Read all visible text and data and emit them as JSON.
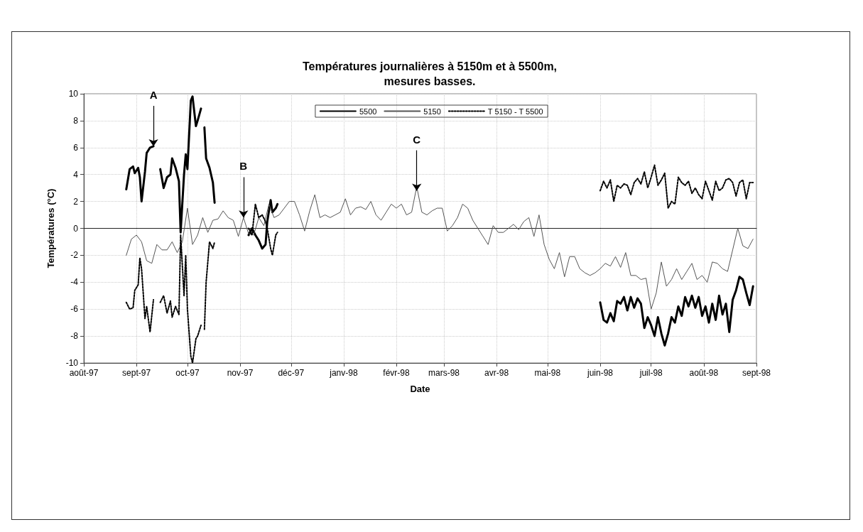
{
  "chart_data": {
    "type": "line",
    "title": "Températures journalières à 5150m et à 5500m,\nmesures basses.",
    "xlabel": "Date",
    "ylabel": "Températures (°C)",
    "xlim": [
      "1997-08-01",
      "1998-09-01"
    ],
    "xticks": [
      {
        "value": "1997-08-01",
        "label": "août-97"
      },
      {
        "value": "1997-09-01",
        "label": "sept-97"
      },
      {
        "value": "1997-10-01",
        "label": "oct-97"
      },
      {
        "value": "1997-11-01",
        "label": "nov-97"
      },
      {
        "value": "1997-12-01",
        "label": "déc-97"
      },
      {
        "value": "1998-01-01",
        "label": "janv-98"
      },
      {
        "value": "1998-02-01",
        "label": "févr-98"
      },
      {
        "value": "1998-03-01",
        "label": "mars-98"
      },
      {
        "value": "1998-04-01",
        "label": "avr-98"
      },
      {
        "value": "1998-05-01",
        "label": "mai-98"
      },
      {
        "value": "1998-06-01",
        "label": "juin-98"
      },
      {
        "value": "1998-07-01",
        "label": "juil-98"
      },
      {
        "value": "1998-08-01",
        "label": "août-98"
      },
      {
        "value": "1998-09-01",
        "label": "sept-98"
      }
    ],
    "ylim": [
      -10,
      10
    ],
    "yticks": [
      -10,
      -8,
      -6,
      -4,
      -2,
      0,
      2,
      4,
      6,
      8,
      10
    ],
    "grid": true,
    "legend": "top",
    "annotations": [
      {
        "text": "A",
        "x": "1997-09-11",
        "y": 6.1
      },
      {
        "text": "B",
        "x": "1997-11-03",
        "y": 0.8
      },
      {
        "text": "C",
        "x": "1998-02-13",
        "y": 2.8
      }
    ],
    "series": [
      {
        "name": "5500",
        "color": "#000000",
        "line_style": "solid",
        "x": [
          "1997-08-26",
          "1997-08-28",
          "1997-08-30",
          "1997-08-31",
          "1997-09-02",
          "1997-09-03",
          "1997-09-04",
          "1997-09-06",
          "1997-09-07",
          "1997-09-09",
          "1997-09-11",
          "1997-09-13",
          "1997-09-15",
          "1997-09-17",
          "1997-09-19",
          "1997-09-21",
          "1997-09-22",
          "1997-09-24",
          "1997-09-26",
          "1997-09-27",
          "1997-09-29",
          "1997-09-30",
          "1997-10-01",
          "1997-10-03",
          "1997-10-04",
          "1997-10-06",
          "1997-10-07",
          "1997-10-09",
          "1997-10-10",
          "1997-10-11",
          "1997-10-12",
          "1997-10-14",
          "1997-10-16",
          "1997-10-17",
          "1997-10-20",
          "1997-11-06",
          "1997-11-08",
          "1997-11-10",
          "1997-11-12",
          "1997-11-14",
          "1997-11-16",
          "1997-11-17",
          "1997-11-19",
          "1997-11-20",
          "1997-11-22",
          "1997-11-23",
          "1997-12-01",
          "1998-06-01",
          "1998-06-03",
          "1998-06-05",
          "1998-06-07",
          "1998-06-09",
          "1998-06-11",
          "1998-06-13",
          "1998-06-15",
          "1998-06-17",
          "1998-06-19",
          "1998-06-21",
          "1998-06-23",
          "1998-06-25",
          "1998-06-27",
          "1998-06-29",
          "1998-07-01",
          "1998-07-03",
          "1998-07-05",
          "1998-07-07",
          "1998-07-09",
          "1998-07-11",
          "1998-07-13",
          "1998-07-15",
          "1998-07-17",
          "1998-07-19",
          "1998-07-21",
          "1998-07-23",
          "1998-07-25",
          "1998-07-27",
          "1998-07-29",
          "1998-07-31",
          "1998-08-02",
          "1998-08-04",
          "1998-08-06",
          "1998-08-08",
          "1998-08-10",
          "1998-08-12",
          "1998-08-14",
          "1998-08-16",
          "1998-08-18",
          "1998-08-20",
          "1998-08-22",
          "1998-08-24",
          "1998-08-26",
          "1998-08-28",
          "1998-08-30"
        ],
        "values": [
          2.9,
          4.4,
          4.6,
          4.1,
          4.5,
          3.8,
          2.0,
          4.2,
          5.6,
          6.0,
          6.1,
          null,
          4.4,
          3.0,
          3.8,
          4.0,
          5.2,
          4.5,
          3.5,
          -0.3,
          4.0,
          5.5,
          4.4,
          9.5,
          9.8,
          7.6,
          8.0,
          8.9,
          null,
          7.5,
          5.2,
          4.5,
          3.4,
          1.9,
          null,
          -0.5,
          0.0,
          -0.5,
          -0.9,
          -1.5,
          -1.2,
          0.5,
          2.1,
          1.2,
          1.5,
          1.8,
          null,
          -5.5,
          -6.8,
          -7.0,
          -6.3,
          -6.9,
          -5.4,
          -5.6,
          -5.1,
          -6.1,
          -5.1,
          -5.9,
          -5.2,
          -5.6,
          -7.4,
          -6.6,
          -7.2,
          -8.0,
          -6.6,
          -7.8,
          -8.7,
          -7.8,
          -6.6,
          -7.0,
          -5.8,
          -6.5,
          -5.1,
          -5.8,
          -5.0,
          -5.9,
          -5.1,
          -6.5,
          -5.8,
          -7.0,
          -5.6,
          -6.8,
          -5.0,
          -6.4,
          -5.6,
          -7.7,
          -5.3,
          -4.6,
          -3.6,
          -3.8,
          -4.8,
          -5.7,
          -4.3
        ]
      },
      {
        "name": "5150",
        "color": "#555555",
        "line_style": "solid",
        "x": [
          "1997-08-26",
          "1997-08-29",
          "1997-09-01",
          "1997-09-04",
          "1997-09-07",
          "1997-09-10",
          "1997-09-13",
          "1997-09-16",
          "1997-09-19",
          "1997-09-22",
          "1997-09-25",
          "1997-09-28",
          "1997-10-01",
          "1997-10-04",
          "1997-10-07",
          "1997-10-10",
          "1997-10-13",
          "1997-10-16",
          "1997-10-19",
          "1997-10-22",
          "1997-10-25",
          "1997-10-28",
          "1997-10-31",
          "1997-11-03",
          "1997-11-06",
          "1997-11-09",
          "1997-11-12",
          "1997-11-15",
          "1997-11-18",
          "1997-11-21",
          "1997-11-24",
          "1997-11-27",
          "1997-11-30",
          "1997-12-03",
          "1997-12-06",
          "1997-12-09",
          "1997-12-12",
          "1997-12-15",
          "1997-12-18",
          "1997-12-21",
          "1997-12-24",
          "1997-12-27",
          "1997-12-30",
          "1998-01-02",
          "1998-01-05",
          "1998-01-08",
          "1998-01-11",
          "1998-01-14",
          "1998-01-17",
          "1998-01-20",
          "1998-01-23",
          "1998-01-26",
          "1998-01-29",
          "1998-02-01",
          "1998-02-04",
          "1998-02-07",
          "1998-02-10",
          "1998-02-13",
          "1998-02-16",
          "1998-02-19",
          "1998-02-22",
          "1998-02-25",
          "1998-02-28",
          "1998-03-03",
          "1998-03-06",
          "1998-03-09",
          "1998-03-12",
          "1998-03-15",
          "1998-03-18",
          "1998-03-21",
          "1998-03-24",
          "1998-03-27",
          "1998-03-30",
          "1998-04-02",
          "1998-04-05",
          "1998-04-08",
          "1998-04-11",
          "1998-04-14",
          "1998-04-17",
          "1998-04-20",
          "1998-04-23",
          "1998-04-26",
          "1998-04-29",
          "1998-05-02",
          "1998-05-05",
          "1998-05-08",
          "1998-05-11",
          "1998-05-14",
          "1998-05-17",
          "1998-05-20",
          "1998-05-23",
          "1998-05-26",
          "1998-05-29",
          "1998-06-01",
          "1998-06-04",
          "1998-06-07",
          "1998-06-10",
          "1998-06-13",
          "1998-06-16",
          "1998-06-19",
          "1998-06-22",
          "1998-06-25",
          "1998-06-28",
          "1998-07-01",
          "1998-07-04",
          "1998-07-07",
          "1998-07-10",
          "1998-07-13",
          "1998-07-16",
          "1998-07-19",
          "1998-07-22",
          "1998-07-25",
          "1998-07-28",
          "1998-07-31",
          "1998-08-03",
          "1998-08-06",
          "1998-08-09",
          "1998-08-12",
          "1998-08-15",
          "1998-08-18",
          "1998-08-21",
          "1998-08-24",
          "1998-08-27",
          "1998-08-30"
        ],
        "values": [
          -2.0,
          -0.8,
          -0.5,
          -1.0,
          -2.4,
          -2.6,
          -1.2,
          -1.6,
          -1.6,
          -1.0,
          -1.8,
          -1.0,
          1.5,
          -1.2,
          -0.5,
          0.8,
          -0.3,
          0.6,
          0.7,
          1.3,
          0.8,
          0.6,
          -0.6,
          0.8,
          -0.4,
          -0.5,
          0.8,
          0.2,
          1.8,
          0.8,
          1.0,
          1.5,
          2.0,
          2.0,
          1.0,
          -0.2,
          1.3,
          2.5,
          0.8,
          1.0,
          0.8,
          1.0,
          1.2,
          2.2,
          1.0,
          1.5,
          1.6,
          1.4,
          2.0,
          1.0,
          0.6,
          1.2,
          1.8,
          1.5,
          1.8,
          1.0,
          1.2,
          3.1,
          1.2,
          1.0,
          1.3,
          1.5,
          1.5,
          -0.2,
          0.2,
          0.8,
          1.8,
          1.5,
          0.6,
          0.0,
          -0.6,
          -1.2,
          0.2,
          -0.3,
          -0.3,
          0.0,
          0.3,
          -0.1,
          0.5,
          0.8,
          -0.6,
          1.0,
          -1.2,
          -2.3,
          -3.0,
          -1.8,
          -3.6,
          -2.1,
          -2.1,
          -3.0,
          -3.3,
          -3.5,
          -3.3,
          -3.0,
          -2.6,
          -2.8,
          -2.1,
          -2.9,
          -1.8,
          -3.5,
          -3.5,
          -3.8,
          -3.7,
          -6.0,
          -4.8,
          -2.5,
          -4.3,
          -3.8,
          -3.0,
          -3.8,
          -3.2,
          -2.6,
          -3.8,
          -3.5,
          -4.0,
          -2.5,
          -2.6,
          -3.0,
          -3.2,
          -1.6,
          0.0,
          -1.3,
          -1.5,
          -0.8
        ]
      },
      {
        "name": "T 5150 - T 5500",
        "color": "#000000",
        "line_style": "dotted",
        "x": [
          "1997-08-26",
          "1997-08-28",
          "1997-08-30",
          "1997-08-31",
          "1997-09-02",
          "1997-09-03",
          "1997-09-04",
          "1997-09-06",
          "1997-09-07",
          "1997-09-09",
          "1997-09-11",
          "1997-09-13",
          "1997-09-15",
          "1997-09-17",
          "1997-09-19",
          "1997-09-21",
          "1997-09-22",
          "1997-09-24",
          "1997-09-26",
          "1997-09-27",
          "1997-09-29",
          "1997-09-30",
          "1997-10-01",
          "1997-10-03",
          "1997-10-04",
          "1997-10-06",
          "1997-10-07",
          "1997-10-09",
          "1997-10-10",
          "1997-10-11",
          "1997-10-12",
          "1997-10-14",
          "1997-10-16",
          "1997-10-17",
          "1997-10-20",
          "1997-11-06",
          "1997-11-08",
          "1997-11-10",
          "1997-11-12",
          "1997-11-14",
          "1997-11-16",
          "1997-11-17",
          "1997-11-19",
          "1997-11-20",
          "1997-11-22",
          "1997-11-23",
          "1997-12-01",
          "1998-06-01",
          "1998-06-03",
          "1998-06-05",
          "1998-06-07",
          "1998-06-09",
          "1998-06-11",
          "1998-06-13",
          "1998-06-15",
          "1998-06-17",
          "1998-06-19",
          "1998-06-21",
          "1998-06-23",
          "1998-06-25",
          "1998-06-27",
          "1998-06-29",
          "1998-07-01",
          "1998-07-03",
          "1998-07-05",
          "1998-07-07",
          "1998-07-09",
          "1998-07-11",
          "1998-07-13",
          "1998-07-15",
          "1998-07-17",
          "1998-07-19",
          "1998-07-21",
          "1998-07-23",
          "1998-07-25",
          "1998-07-27",
          "1998-07-29",
          "1998-07-31",
          "1998-08-02",
          "1998-08-04",
          "1998-08-06",
          "1998-08-08",
          "1998-08-10",
          "1998-08-12",
          "1998-08-14",
          "1998-08-16",
          "1998-08-18",
          "1998-08-20",
          "1998-08-22",
          "1998-08-24",
          "1998-08-26",
          "1998-08-28",
          "1998-08-30"
        ],
        "values": [
          -5.5,
          -6.0,
          -5.9,
          -4.6,
          -4.2,
          -2.2,
          -3.0,
          -6.7,
          -5.8,
          -7.7,
          -5.3,
          null,
          -5.5,
          -5.0,
          -6.3,
          -5.4,
          -6.6,
          -5.8,
          -6.4,
          -0.5,
          -5.0,
          -2.0,
          -6.0,
          -9.5,
          -10.0,
          -8.2,
          -8.0,
          -7.2,
          null,
          -7.5,
          -4.0,
          -1.0,
          -1.5,
          -1.0,
          null,
          0.0,
          -0.5,
          1.8,
          0.8,
          1.0,
          0.5,
          0.0,
          -1.5,
          -2.0,
          -0.5,
          -0.3,
          null,
          2.8,
          3.5,
          3.0,
          3.6,
          2.0,
          3.2,
          3.0,
          3.3,
          3.2,
          2.5,
          3.4,
          3.7,
          3.3,
          4.2,
          3.0,
          3.8,
          4.7,
          3.2,
          3.6,
          4.1,
          1.5,
          2.0,
          1.8,
          3.8,
          3.4,
          3.2,
          3.5,
          2.6,
          3.0,
          2.5,
          2.2,
          3.5,
          2.8,
          2.1,
          3.5,
          2.8,
          3.0,
          3.6,
          3.7,
          3.4,
          2.4,
          3.4,
          3.6,
          2.2,
          3.4,
          3.4
        ]
      }
    ]
  }
}
